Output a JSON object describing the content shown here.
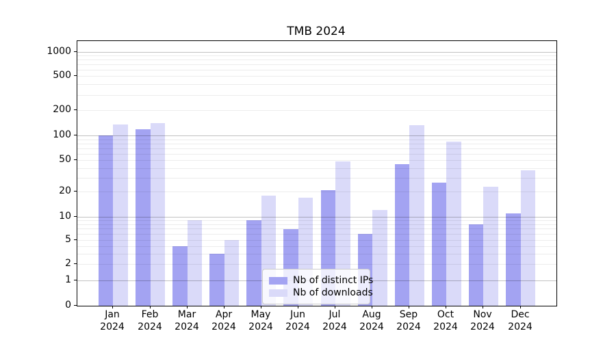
{
  "title": "TMB 2024",
  "chart_data": {
    "type": "bar",
    "title": "TMB 2024",
    "categories": [
      "Jan",
      "Feb",
      "Mar",
      "Apr",
      "May",
      "Jun",
      "Jul",
      "Aug",
      "Sep",
      "Oct",
      "Nov",
      "Dec"
    ],
    "category_year": "2024",
    "series": [
      {
        "name": "Nb of distinct IPs",
        "color": "#a3a3f2",
        "values": [
          100,
          119,
          4,
          3,
          9,
          7,
          21,
          6,
          45,
          26,
          8,
          11
        ]
      },
      {
        "name": "Nb of downloads",
        "color": "#dadaf9",
        "values": [
          135,
          140,
          9,
          5,
          18,
          17,
          48,
          12,
          132,
          84,
          23,
          37
        ]
      }
    ],
    "yscale": "log",
    "ylim": [
      0,
      1200
    ],
    "yticks": [
      0,
      1,
      2,
      5,
      10,
      20,
      50,
      100,
      200,
      500,
      1000
    ],
    "grid": true,
    "legend_position": "lower center",
    "xlabel": "",
    "ylabel": ""
  }
}
